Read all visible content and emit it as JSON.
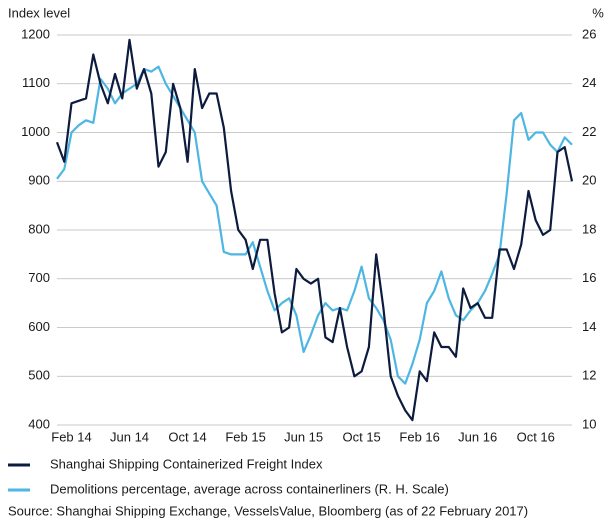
{
  "chart_data": {
    "type": "line",
    "y_label": "Index level",
    "y2_label": "%",
    "source": "Source: Shanghai Shipping Exchange, VesselsValue, Bloomberg (as of 22 February 2017)",
    "categories": [
      null,
      null,
      "Feb 14",
      null,
      null,
      null,
      null,
      null,
      null,
      null,
      "Jun 14",
      null,
      null,
      null,
      null,
      null,
      null,
      null,
      "Oct 14",
      null,
      null,
      null,
      null,
      null,
      null,
      null,
      "Feb 15",
      null,
      null,
      null,
      null,
      null,
      null,
      null,
      "Jun 15",
      null,
      null,
      null,
      null,
      null,
      null,
      null,
      "Oct 15",
      null,
      null,
      null,
      null,
      null,
      null,
      null,
      "Feb 16",
      null,
      null,
      null,
      null,
      null,
      null,
      null,
      "Jun 16",
      null,
      null,
      null,
      null,
      null,
      null,
      null,
      "Oct 16",
      null,
      null,
      null,
      null,
      null
    ],
    "ylim": [
      400,
      1200
    ],
    "yticks": [
      400,
      500,
      600,
      700,
      800,
      900,
      1000,
      1100,
      1200
    ],
    "y2lim": [
      10,
      26
    ],
    "y2ticks": [
      10,
      12,
      14,
      16,
      18,
      20,
      22,
      24,
      26
    ],
    "grid": true,
    "series": [
      {
        "name": "Shanghai Shipping Containerized Freight Index",
        "color": "#0d1b3e",
        "values": [
          980,
          940,
          1060,
          1065,
          1070,
          1160,
          1100,
          1060,
          1120,
          1070,
          1190,
          1090,
          1130,
          1080,
          930,
          960,
          1100,
          1050,
          940,
          1130,
          1050,
          1080,
          1080,
          1010,
          880,
          800,
          780,
          720,
          780,
          780,
          670,
          590,
          600,
          720,
          700,
          690,
          700,
          580,
          570,
          640,
          560,
          500,
          510,
          560,
          750,
          640,
          500,
          460,
          430,
          410,
          510,
          490,
          590,
          560,
          560,
          540,
          680,
          640,
          650,
          620,
          620,
          760,
          760,
          720,
          770,
          880,
          820,
          790,
          800,
          960,
          970,
          900
        ]
      },
      {
        "name": "Demolitions percentage, average across containerliners (R. H. Scale)",
        "color": "#4db6e2",
        "axis": "y2",
        "values": [
          20.1,
          20.5,
          22.0,
          22.3,
          22.5,
          22.4,
          24.2,
          23.8,
          23.2,
          23.6,
          23.8,
          24.0,
          24.6,
          24.5,
          24.7,
          24.0,
          23.5,
          23.0,
          22.5,
          22.0,
          20.0,
          19.5,
          19.0,
          17.1,
          17.0,
          17.0,
          17.0,
          17.5,
          16.5,
          15.5,
          14.7,
          15.0,
          15.2,
          14.5,
          13.0,
          13.7,
          14.5,
          15.0,
          14.7,
          14.8,
          14.7,
          15.5,
          16.5,
          15.2,
          14.8,
          14.3,
          13.5,
          12.0,
          11.7,
          12.5,
          13.5,
          15.0,
          15.5,
          16.3,
          15.2,
          14.5,
          14.3,
          14.7,
          15.0,
          15.5,
          16.2,
          17.0,
          19.5,
          22.5,
          22.8,
          21.7,
          22.0,
          22.0,
          21.5,
          21.2,
          21.8,
          21.5
        ]
      }
    ]
  }
}
